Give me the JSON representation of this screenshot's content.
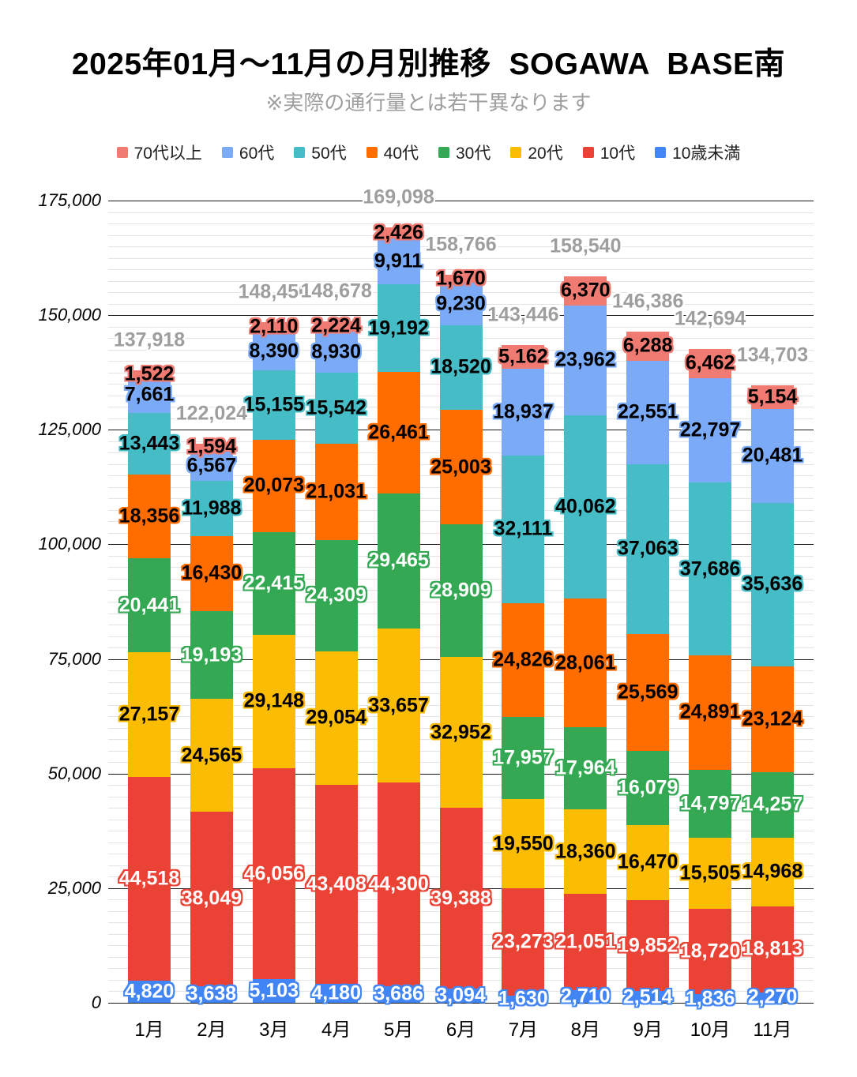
{
  "chart_data": {
    "type": "bar",
    "stacked": true,
    "title": "2025年01月〜11月の月別推移  SOGAWA  BASE南",
    "subtitle": "※実際の通行量とは若干異なります",
    "categories": [
      "1月",
      "2月",
      "3月",
      "4月",
      "5月",
      "6月",
      "7月",
      "8月",
      "9月",
      "10月",
      "11月"
    ],
    "series": [
      {
        "key": "70plus",
        "name": "70代以上",
        "color": "#F07B72",
        "label_text_color": "#000000",
        "values": [
          1522,
          1594,
          2110,
          2224,
          2426,
          1670,
          5162,
          6370,
          6288,
          6462,
          5154
        ]
      },
      {
        "key": "60s",
        "name": "60代",
        "color": "#7BAAF7",
        "label_text_color": "#000000",
        "values": [
          7661,
          6567,
          8390,
          8930,
          9911,
          9230,
          18937,
          23962,
          22551,
          22797,
          20481
        ]
      },
      {
        "key": "50s",
        "name": "50代",
        "color": "#46BDC6",
        "label_text_color": "#000000",
        "values": [
          13443,
          11988,
          15155,
          15542,
          19192,
          18520,
          32111,
          40062,
          37063,
          37686,
          35636
        ]
      },
      {
        "key": "40s",
        "name": "40代",
        "color": "#FF6D01",
        "label_text_color": "#000000",
        "values": [
          18356,
          16430,
          20073,
          21031,
          26461,
          25003,
          24826,
          28061,
          25569,
          24891,
          23124
        ]
      },
      {
        "key": "30s",
        "name": "30代",
        "color": "#34A853",
        "label_text_color": "#FFFFFF",
        "values": [
          20441,
          19193,
          22415,
          24309,
          29465,
          28909,
          17957,
          17964,
          16079,
          14797,
          14257
        ]
      },
      {
        "key": "20s",
        "name": "20代",
        "color": "#FBBC04",
        "label_text_color": "#000000",
        "values": [
          27157,
          24565,
          29148,
          29054,
          33657,
          32952,
          19550,
          18360,
          16470,
          15505,
          14968
        ]
      },
      {
        "key": "10s",
        "name": "10代",
        "color": "#EA4335",
        "label_text_color": "#FFFFFF",
        "values": [
          44518,
          38049,
          46056,
          43408,
          44300,
          39388,
          23273,
          21051,
          19852,
          18720,
          18813
        ]
      },
      {
        "key": "under10",
        "name": "10歳未満",
        "color": "#4285F4",
        "label_text_color": "#FFFFFF",
        "values": [
          4820,
          3638,
          5103,
          4180,
          3686,
          3094,
          1630,
          2710,
          2514,
          1836,
          2270
        ]
      }
    ],
    "stack_order_bottom_to_top": [
      "under10",
      "10s",
      "20s",
      "30s",
      "40s",
      "50s",
      "60s",
      "70plus"
    ],
    "totals": [
      137918,
      122024,
      148450,
      148678,
      169098,
      158766,
      143446,
      158540,
      146386,
      142694,
      134703
    ],
    "y_axis": {
      "min": 0,
      "max": 175000,
      "major_step": 25000,
      "minor_step": 2500,
      "tick_labels": [
        "0",
        "25,000",
        "50,000",
        "75,000",
        "100,000",
        "125,000",
        "150,000",
        "175,000"
      ]
    },
    "legend_position": "top",
    "grid": true
  },
  "colors": {
    "background": "#FFFFFF",
    "title_text": "#000000",
    "subtitle_text": "#9E9E9E",
    "total_label": "#9E9E9E",
    "grid_major": "#1A1A1A",
    "grid_minor": "#E4E4E4",
    "axis_tick_text": "#000000",
    "month_label_text": "#000000",
    "legend_text": "#212121"
  }
}
